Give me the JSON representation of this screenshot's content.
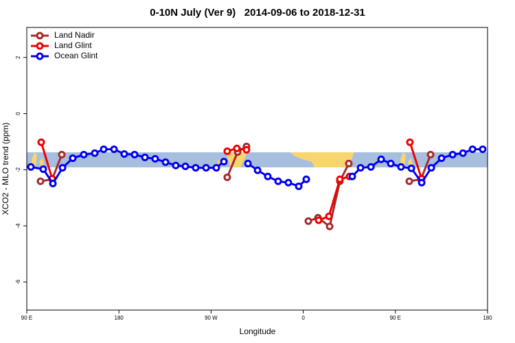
{
  "chart_data": {
    "type": "line",
    "title": "0-10N July (Ver 9)   2014-09-06 to 2018-12-31",
    "x_label": "Longitude",
    "y_label": "XCO2 - MLO trend (ppm)",
    "xlim": [
      90,
      540
    ],
    "ylim": [
      -7,
      3.07
    ],
    "xticks": [
      {
        "value": 90,
        "label": "90 E"
      },
      180,
      {
        "value": 270,
        "label": "90 W"
      },
      {
        "value": 360,
        "label": "0"
      },
      {
        "value": 450,
        "label": "90 E"
      },
      {
        "value": 540,
        "label": "180"
      }
    ],
    "yticks": [
      2,
      0,
      -2,
      -4,
      -6
    ],
    "legend": "top-left",
    "series": [
      {
        "name": "Land Nadir",
        "color": "#a52a2a",
        "x": [
          103.4,
          114.8,
          124.2,
          null,
          285.8,
          295.9,
          304.6,
          null,
          365.0,
          374.4,
          385.8,
          395.8,
          404.5,
          null,
          463.6,
          475.0,
          484.4
        ],
        "values": [
          -2.41,
          -2.34,
          -1.46,
          null,
          -2.27,
          -1.37,
          -1.17,
          null,
          -3.83,
          -3.71,
          -4.02,
          -2.41,
          -1.78,
          null,
          -2.41,
          -2.34,
          -1.46
        ]
      },
      {
        "name": "Land Glint",
        "color": "#ee0000",
        "x": [
          104.1,
          114.8,
          null,
          285.8,
          295.2,
          304.6,
          null,
          375.0,
          385.1,
          395.8,
          405.2,
          null,
          464.2,
          475.6
        ],
        "values": [
          -1.02,
          -2.32,
          null,
          -1.34,
          -1.24,
          -1.29,
          null,
          -3.8,
          -3.66,
          -2.34,
          -2.24,
          null,
          -1.02,
          -2.32
        ]
      },
      {
        "name": "Ocean Glint",
        "color": "#0000ee",
        "x": [
          94.0,
          106.1,
          115.5,
          124.9,
          134.9,
          145.7,
          156.4,
          165.1,
          175.2,
          185.2,
          195.3,
          205.4,
          215.4,
          225.5,
          235.5,
          244.9,
          255.0,
          265.1,
          275.1,
          282.5,
          null,
          306.0,
          315.4,
          325.4,
          335.5,
          345.5,
          355.6,
          363.0,
          null,
          407.9,
          416.0,
          426.1,
          436.1,
          445.5,
          455.5,
          465.6,
          475.7,
          485.1,
          495.1,
          505.9,
          516.0,
          525.4,
          535.3
        ],
        "values": [
          -1.9,
          -1.98,
          -2.49,
          -1.93,
          -1.59,
          -1.46,
          -1.41,
          -1.27,
          -1.27,
          -1.44,
          -1.46,
          -1.56,
          -1.61,
          -1.73,
          -1.85,
          -1.88,
          -1.93,
          -1.93,
          -1.93,
          -1.71,
          null,
          -1.78,
          -2.02,
          -2.24,
          -2.41,
          -2.46,
          -2.59,
          -2.34,
          null,
          -2.24,
          -1.93,
          -1.9,
          -1.63,
          -1.78,
          -1.9,
          -1.95,
          -2.46,
          -1.93,
          -1.59,
          -1.46,
          -1.41,
          -1.27,
          -1.27
        ]
      }
    ]
  }
}
